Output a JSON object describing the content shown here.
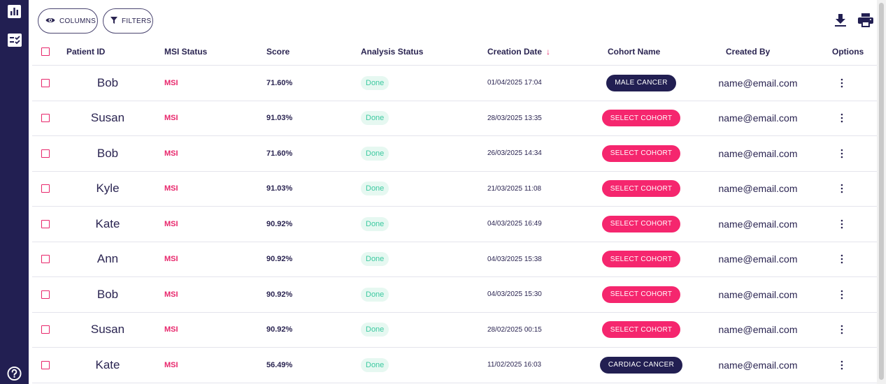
{
  "toolbar": {
    "columns_label": "COLUMNS",
    "filters_label": "FILTERS"
  },
  "icons": {
    "sidebar": [
      "bar-chart-icon",
      "task-list-icon",
      "help-icon"
    ],
    "toolbar": [
      "eye-icon",
      "filter-icon",
      "download-icon",
      "print-icon"
    ]
  },
  "colors": {
    "sidebar": "#221f52",
    "accent": "#e8266b",
    "success": "#3cc9a0",
    "chip_dark": "#221f52"
  },
  "table": {
    "headers": {
      "patient_id": "Patient ID",
      "msi_status": "MSI Status",
      "score": "Score",
      "analysis_status": "Analysis Status",
      "creation_date": "Creation Date",
      "cohort_name": "Cohort Name",
      "created_by": "Created By",
      "options": "Options"
    },
    "sort": {
      "column": "creation_date",
      "direction": "descending"
    },
    "rows": [
      {
        "patient_id": "Bob",
        "msi": "MSI",
        "score": "71.60%",
        "status": "Done",
        "date": "01/04/2025 17:04",
        "cohort": "MALE CANCER",
        "cohort_assigned": true,
        "created_by": "name@email.com"
      },
      {
        "patient_id": "Susan",
        "msi": "MSI",
        "score": "91.03%",
        "status": "Done",
        "date": "28/03/2025 13:35",
        "cohort": "SELECT COHORT",
        "cohort_assigned": false,
        "created_by": "name@email.com"
      },
      {
        "patient_id": "Bob",
        "msi": "MSI",
        "score": "71.60%",
        "status": "Done",
        "date": "26/03/2025 14:34",
        "cohort": "SELECT COHORT",
        "cohort_assigned": false,
        "created_by": "name@email.com"
      },
      {
        "patient_id": "Kyle",
        "msi": "MSI",
        "score": "91.03%",
        "status": "Done",
        "date": "21/03/2025 11:08",
        "cohort": "SELECT COHORT",
        "cohort_assigned": false,
        "created_by": "name@email.com"
      },
      {
        "patient_id": "Kate",
        "msi": "MSI",
        "score": "90.92%",
        "status": "Done",
        "date": "04/03/2025 16:49",
        "cohort": "SELECT COHORT",
        "cohort_assigned": false,
        "created_by": "name@email.com"
      },
      {
        "patient_id": "Ann",
        "msi": "MSI",
        "score": "90.92%",
        "status": "Done",
        "date": "04/03/2025 15:38",
        "cohort": "SELECT COHORT",
        "cohort_assigned": false,
        "created_by": "name@email.com"
      },
      {
        "patient_id": "Bob",
        "msi": "MSI",
        "score": "90.92%",
        "status": "Done",
        "date": "04/03/2025 15:30",
        "cohort": "SELECT COHORT",
        "cohort_assigned": false,
        "created_by": "name@email.com"
      },
      {
        "patient_id": "Susan",
        "msi": "MSI",
        "score": "90.92%",
        "status": "Done",
        "date": "28/02/2025 00:15",
        "cohort": "SELECT COHORT",
        "cohort_assigned": false,
        "created_by": "name@email.com"
      },
      {
        "patient_id": "Kate",
        "msi": "MSI",
        "score": "56.49%",
        "status": "Done",
        "date": "11/02/2025 16:03",
        "cohort": "CARDIAC CANCER",
        "cohort_assigned": true,
        "created_by": "name@email.com"
      }
    ]
  }
}
